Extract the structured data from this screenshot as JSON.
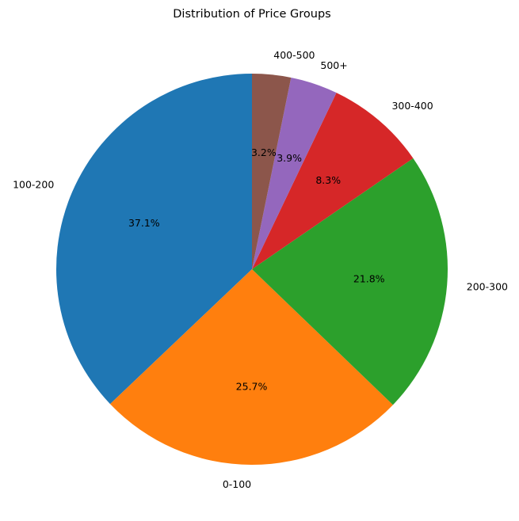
{
  "chart_data": {
    "type": "pie",
    "title": "Distribution of Price Groups",
    "start_angle_deg": 90,
    "direction": "counterclockwise",
    "slices": [
      {
        "label": "100-200",
        "value": 37.1,
        "pct_text": "37.1%",
        "color": "#1f77b4"
      },
      {
        "label": "0-100",
        "value": 25.7,
        "pct_text": "25.7%",
        "color": "#ff7f0e"
      },
      {
        "label": "200-300",
        "value": 21.8,
        "pct_text": "21.8%",
        "color": "#2ca02c"
      },
      {
        "label": "300-400",
        "value": 8.3,
        "pct_text": "8.3%",
        "color": "#d62728"
      },
      {
        "label": "500+",
        "value": 3.9,
        "pct_text": "3.9%",
        "color": "#9467bd"
      },
      {
        "label": "400-500",
        "value": 3.2,
        "pct_text": "3.2%",
        "color": "#8c564b"
      }
    ]
  }
}
